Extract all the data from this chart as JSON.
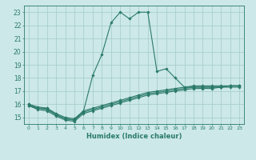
{
  "title": "",
  "xlabel": "Humidex (Indice chaleur)",
  "ylabel": "",
  "bg_color": "#cce8e8",
  "grid_color": "#aacece",
  "line_color": "#2a7a6a",
  "xlim": [
    -0.5,
    23.5
  ],
  "ylim": [
    14.5,
    23.5
  ],
  "xticks": [
    0,
    1,
    2,
    3,
    4,
    5,
    6,
    7,
    8,
    9,
    10,
    11,
    12,
    13,
    14,
    15,
    16,
    17,
    18,
    19,
    20,
    21,
    22,
    23
  ],
  "yticks": [
    15,
    16,
    17,
    18,
    19,
    20,
    21,
    22,
    23
  ],
  "series1_x": [
    0,
    1,
    2,
    3,
    4,
    5,
    6,
    7,
    8,
    9,
    10,
    11,
    12,
    13,
    14,
    15,
    16,
    17,
    18,
    19,
    20,
    21,
    22,
    23
  ],
  "series1_y": [
    16.0,
    15.7,
    15.7,
    15.2,
    14.9,
    14.8,
    15.5,
    18.2,
    19.8,
    22.2,
    23.0,
    22.5,
    23.0,
    23.0,
    18.5,
    18.7,
    18.0,
    17.3,
    17.3,
    17.3,
    17.3,
    17.3,
    17.4,
    17.4
  ],
  "series2_x": [
    0,
    1,
    2,
    3,
    4,
    5,
    6,
    7,
    8,
    9,
    10,
    11,
    12,
    13,
    14,
    15,
    16,
    17,
    18,
    19,
    20,
    21,
    22,
    23
  ],
  "series2_y": [
    15.9,
    15.6,
    15.5,
    15.1,
    14.8,
    14.7,
    15.3,
    15.5,
    15.7,
    15.9,
    16.1,
    16.3,
    16.5,
    16.7,
    16.8,
    16.9,
    17.0,
    17.1,
    17.2,
    17.2,
    17.2,
    17.3,
    17.3,
    17.3
  ],
  "series3_x": [
    0,
    1,
    2,
    3,
    4,
    5,
    6,
    7,
    8,
    9,
    10,
    11,
    12,
    13,
    14,
    15,
    16,
    17,
    18,
    19,
    20,
    21,
    22,
    23
  ],
  "series3_y": [
    15.9,
    15.7,
    15.6,
    15.2,
    14.9,
    14.8,
    15.4,
    15.6,
    15.8,
    16.0,
    16.2,
    16.4,
    16.6,
    16.8,
    16.9,
    17.0,
    17.1,
    17.2,
    17.3,
    17.3,
    17.3,
    17.3,
    17.4,
    17.4
  ],
  "series4_x": [
    0,
    1,
    2,
    3,
    4,
    5,
    6,
    7,
    8,
    9,
    10,
    11,
    12,
    13,
    14,
    15,
    16,
    17,
    18,
    19,
    20,
    21,
    22,
    23
  ],
  "series4_y": [
    16.0,
    15.8,
    15.7,
    15.3,
    15.0,
    14.9,
    15.5,
    15.7,
    15.9,
    16.1,
    16.3,
    16.5,
    16.7,
    16.9,
    17.0,
    17.1,
    17.2,
    17.3,
    17.4,
    17.4,
    17.4,
    17.4,
    17.4,
    17.4
  ]
}
